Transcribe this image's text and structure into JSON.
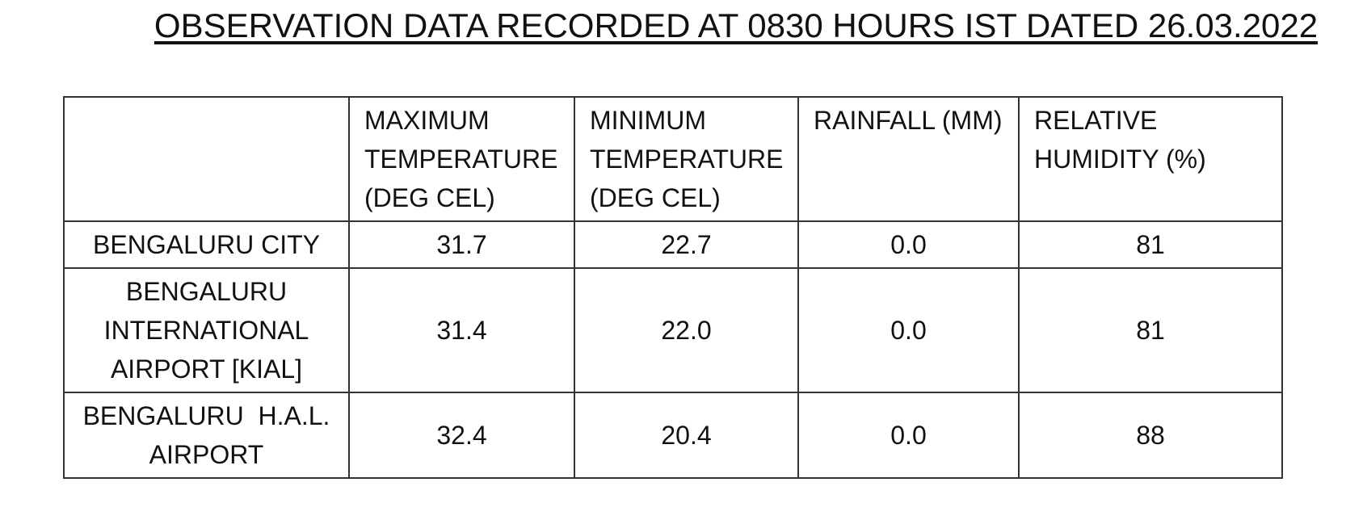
{
  "title": "OBSERVATION DATA RECORDED AT 0830 HOURS IST DATED 26.03.2022",
  "table": {
    "header": [
      "MAXIMUM TEMPERATURE (DEG CEL)",
      "MINIMUM TEMPERATURE (DEG CEL)",
      "RAINFALL (MM)",
      "RELATIVE HUMIDITY (%)"
    ],
    "rows": [
      [
        "BENGALURU CITY",
        "31.7",
        "22.7",
        "0.0",
        "81"
      ],
      [
        "BENGALURU INTERNATIONAL AIRPORT [KIAL]",
        "31.4",
        "22.0",
        "0.0",
        "81"
      ],
      [
        "BENGALURU  H.A.L. AIRPORT",
        "32.4",
        "20.4",
        "0.0",
        "88"
      ]
    ]
  }
}
